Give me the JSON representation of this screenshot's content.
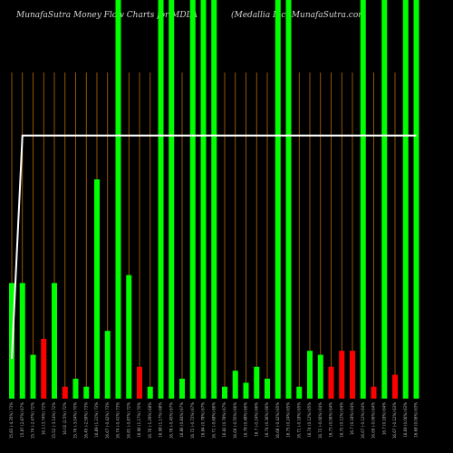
{
  "header": {
    "title_left": "MunafaSutra  Money Flow  Charts for MDLA",
    "title_right": "(Medallia Inc) MunafaSutra.com"
  },
  "colors": {
    "background": "#000000",
    "up": "#00ff00",
    "down": "#ff0000",
    "gridline": "#b86a00",
    "price_line": "#ffffff",
    "label": "#bbbbbb"
  },
  "chart_data": {
    "type": "bar",
    "ylim": [
      0,
      100
    ],
    "values": [
      29,
      29,
      11,
      15,
      29,
      3,
      5,
      3,
      55,
      17,
      100,
      31,
      8,
      3,
      100,
      100,
      5,
      100,
      100,
      100,
      3,
      7,
      4,
      8,
      5,
      100,
      100,
      3,
      12,
      11,
      8,
      12,
      12,
      100,
      3,
      100,
      6,
      100,
      100
    ],
    "colors": [
      "up",
      "up",
      "up",
      "down",
      "up",
      "down",
      "up",
      "up",
      "up",
      "up",
      "up",
      "up",
      "down",
      "up",
      "up",
      "up",
      "up",
      "up",
      "up",
      "up",
      "up",
      "up",
      "up",
      "up",
      "up",
      "up",
      "up",
      "up",
      "up",
      "up",
      "down",
      "down",
      "down",
      "up",
      "down",
      "up",
      "down",
      "up",
      "up"
    ],
    "price_line": [
      10,
      66,
      66,
      66,
      66,
      66,
      66,
      66,
      66,
      66,
      66,
      66,
      66,
      66,
      66,
      66,
      66,
      66,
      66,
      66,
      66,
      66,
      66,
      66,
      66,
      66,
      66,
      66,
      66,
      66,
      66,
      66,
      66,
      66,
      66,
      66,
      66,
      66,
      66
    ],
    "categories": [
      "15.83 (-4.35%) 73%",
      "15.87 (2.87%) 67%",
      "15.74 (-2.47%) 72%",
      "16.1 (3.74%) 72%",
      "15.52 (-3.14%) 72%",
      "16.02 (2.5%) 72%",
      "15.76 (-3.04%) 70%",
      "16.45 (-2.59%) 73%",
      "16.89 (1.31%) 73%",
      "16.67 (-0.42%) 73%",
      "16.74 (-0.41%) 73%",
      "16.81 (-0.87%) 72%",
      "16.96 (1.17%) 70%",
      "16.76 (-1.29%) 68%",
      "16.98 (1.17%) 68%",
      "16.78 (-0.45%) 67%",
      "16.86 (0.84%) 67%",
      "16.72 (-0.72%) 67%",
      "16.84 (0.78%) 67%",
      "16.71 (-0.68%) 66%",
      "16.82 (0.78%) 67%",
      "16.69 (-0.55%) 66%",
      "16.78 (0.48%) 66%",
      "16.7 (-0.24%) 66%",
      "16.74 (0.36%) 66%",
      "16.68 (-0.42%) 65%",
      "16.75 (0.24%) 65%",
      "16.71 (-0.18%) 65%",
      "16.74 (0.12%) 65%",
      "16.72 (-0.06%) 64%",
      "16.73 (0.06%) 64%",
      "16.72 (0.12%) 64%",
      "16.7 (0.18%) 64%",
      "16.67 (-0.12%) 64%",
      "16.69 (-0.06%) 64%",
      "16.7 (0.18%) 64%",
      "16.67 (-0.12%) 63%",
      "16.69 (0.06%) 63%",
      "16.68 (0.06%) 63%"
    ]
  }
}
